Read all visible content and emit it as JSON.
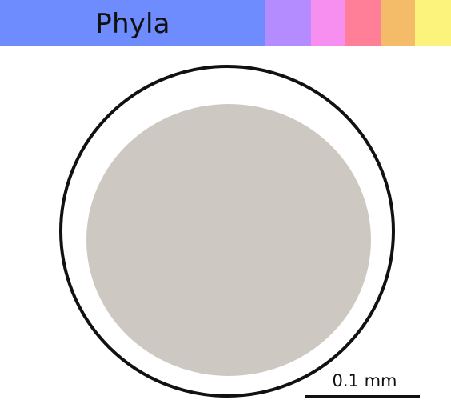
{
  "header": {
    "title": "Phyla",
    "main_color": "#6f8cff",
    "swatches": [
      {
        "name": "purple-swatch",
        "color": "#b48cff"
      },
      {
        "name": "pink-swatch",
        "color": "#f78ff0"
      },
      {
        "name": "rose-swatch",
        "color": "#ff7f99"
      },
      {
        "name": "orange-swatch",
        "color": "#f4bb68"
      },
      {
        "name": "yellow-swatch",
        "color": "#fbf37b"
      }
    ]
  },
  "diagram": {
    "outer_circle_color": "#111111",
    "inner_fill_color": "#cdc9c2"
  },
  "scale_bar": {
    "label": "0.1 mm",
    "color": "#111111"
  }
}
